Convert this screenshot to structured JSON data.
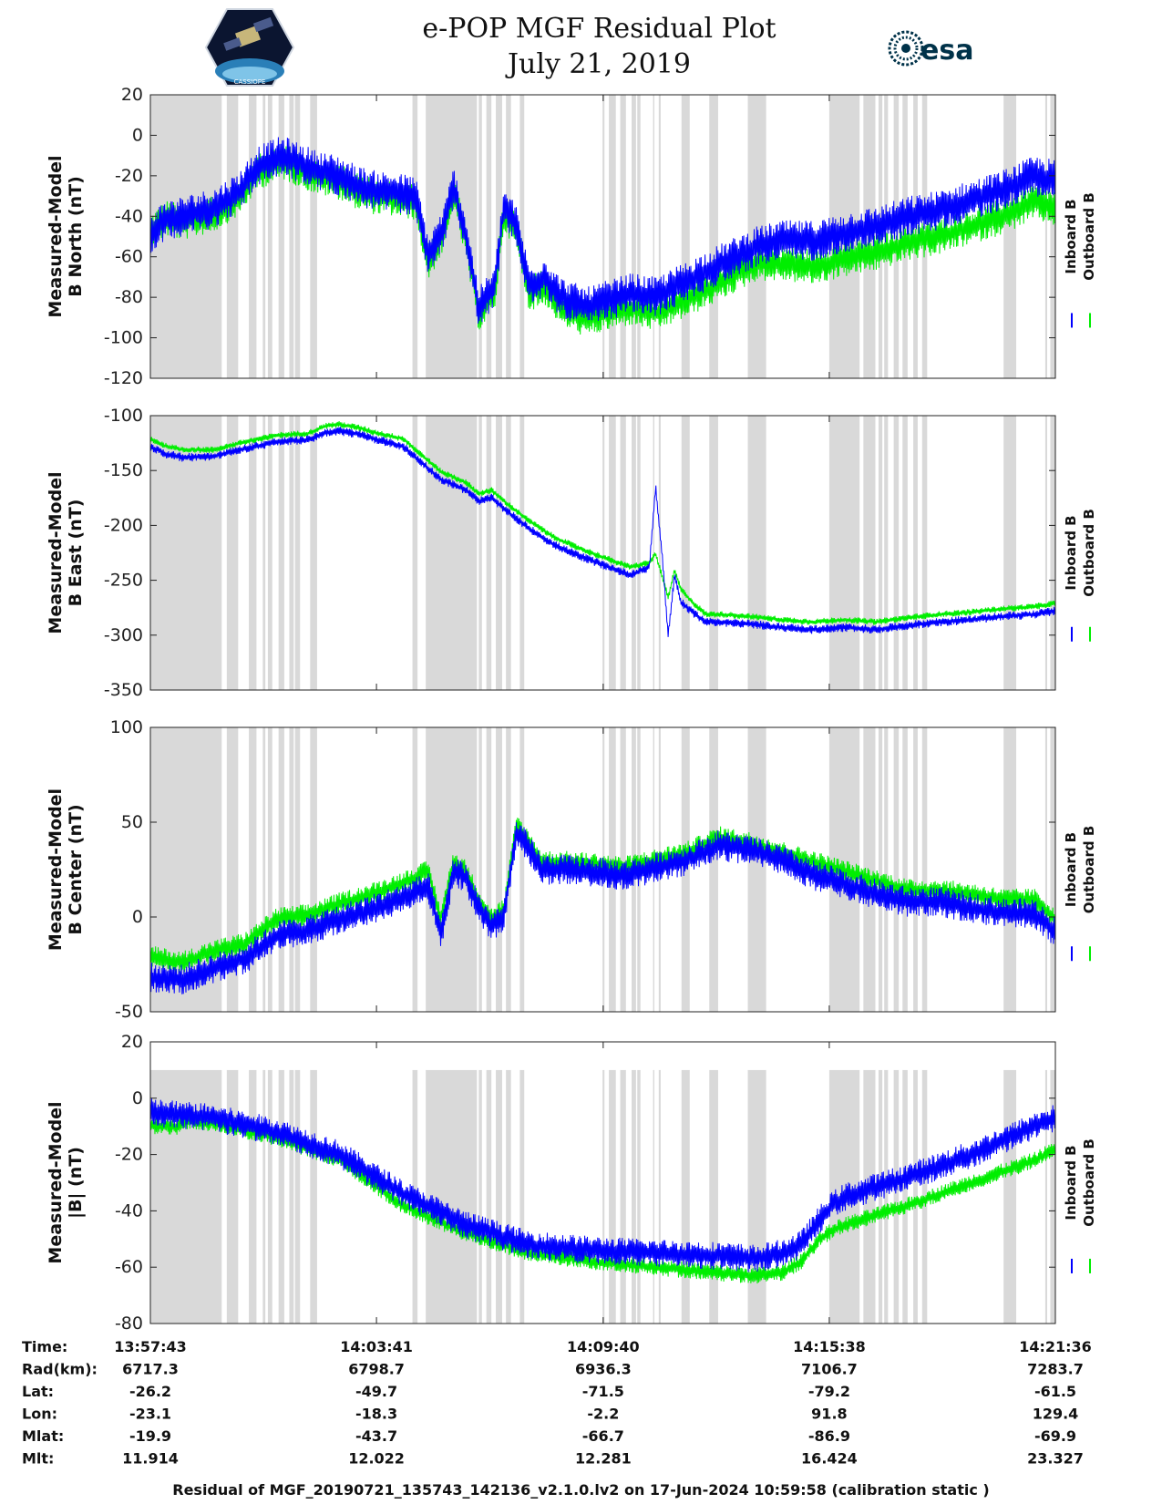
{
  "header": {
    "title_line1": "e-POP MGF Residual Plot",
    "title_line2": "July 21, 2019",
    "left_logo": "cassiope-mission-logo",
    "right_logo_text": "esa"
  },
  "colors": {
    "inboard": "#0000ff",
    "outboard": "#00ee00",
    "gap_shading": "#d9d9d9",
    "axis": "#222222"
  },
  "legend": {
    "inboard": "Inboard B",
    "outboard": "Outboard B"
  },
  "x_range_seconds": [
    0,
    1433
  ],
  "gap_intervals_seconds": [
    [
      0,
      113
    ],
    [
      121,
      139
    ],
    [
      156,
      168
    ],
    [
      178,
      182
    ],
    [
      186,
      193
    ],
    [
      203,
      212
    ],
    [
      220,
      227
    ],
    [
      229,
      237
    ],
    [
      253,
      264
    ],
    [
      415,
      423
    ],
    [
      436,
      517
    ],
    [
      520,
      525
    ],
    [
      532,
      540
    ],
    [
      547,
      557
    ],
    [
      563,
      571
    ],
    [
      585,
      592
    ],
    [
      716,
      719
    ],
    [
      726,
      737
    ],
    [
      744,
      753
    ],
    [
      762,
      769
    ],
    [
      771,
      776
    ],
    [
      796,
      798
    ],
    [
      805,
      808
    ],
    [
      841,
      854
    ],
    [
      885,
      899
    ],
    [
      946,
      975
    ],
    [
      1075,
      1123
    ],
    [
      1129,
      1148
    ],
    [
      1153,
      1159
    ],
    [
      1162,
      1168
    ],
    [
      1177,
      1185
    ],
    [
      1191,
      1199
    ],
    [
      1208,
      1215
    ],
    [
      1222,
      1230
    ],
    [
      1351,
      1371
    ],
    [
      1417,
      1420
    ],
    [
      1425,
      1433
    ]
  ],
  "chart_data": [
    {
      "type": "line",
      "ylabel": "Measured-Model B North (nT)",
      "ylim": [
        -120,
        20
      ],
      "yticks": [
        20,
        0,
        -20,
        -40,
        -60,
        -80,
        -100,
        -120
      ],
      "series": [
        {
          "name": "Outboard B",
          "color": "#00ee00",
          "offset": -3,
          "x": [
            0,
            10,
            25,
            50,
            100,
            140,
            170,
            210,
            260,
            300,
            330,
            350,
            380,
            420,
            440,
            465,
            480,
            500,
            520,
            545,
            560,
            580,
            600,
            625,
            650,
            690,
            720,
            760,
            800,
            850,
            900,
            960,
            1000,
            1050,
            1100,
            1150,
            1200,
            1250,
            1300,
            1350,
            1400,
            1433
          ],
          "y": [
            -45,
            -42,
            -38,
            -40,
            -36,
            -28,
            -15,
            -10,
            -17,
            -20,
            -25,
            -27,
            -28,
            -30,
            -60,
            -45,
            -25,
            -50,
            -85,
            -75,
            -35,
            -45,
            -75,
            -72,
            -82,
            -88,
            -85,
            -82,
            -85,
            -78,
            -70,
            -60,
            -60,
            -62,
            -58,
            -55,
            -50,
            -47,
            -42,
            -37,
            -30,
            -33
          ],
          "noise": 9
        },
        {
          "name": "Inboard B",
          "color": "#0000ff",
          "offset": 0,
          "x": [
            0,
            10,
            25,
            50,
            100,
            140,
            170,
            210,
            260,
            300,
            330,
            350,
            380,
            420,
            440,
            465,
            480,
            500,
            520,
            545,
            560,
            580,
            600,
            625,
            650,
            690,
            720,
            760,
            800,
            850,
            900,
            960,
            1000,
            1050,
            1100,
            1150,
            1200,
            1250,
            1300,
            1350,
            1400,
            1433
          ],
          "y": [
            -50,
            -45,
            -42,
            -40,
            -36,
            -28,
            -15,
            -10,
            -17,
            -20,
            -25,
            -27,
            -28,
            -30,
            -60,
            -45,
            -25,
            -50,
            -85,
            -75,
            -35,
            -45,
            -75,
            -70,
            -80,
            -85,
            -82,
            -78,
            -80,
            -72,
            -64,
            -55,
            -52,
            -52,
            -48,
            -45,
            -40,
            -37,
            -32,
            -27,
            -20,
            -22
          ],
          "noise": 10
        }
      ]
    },
    {
      "type": "line",
      "ylabel": "Measured-Model B East (nT)",
      "ylim": [
        -350,
        -100
      ],
      "yticks": [
        -100,
        -150,
        -200,
        -250,
        -300,
        -350
      ],
      "series": [
        {
          "name": "Outboard B",
          "color": "#00ee00",
          "offset": 4,
          "x": [
            0,
            25,
            50,
            100,
            150,
            200,
            250,
            280,
            300,
            330,
            360,
            400,
            430,
            460,
            480,
            500,
            520,
            540,
            560,
            600,
            640,
            680,
            740,
            760,
            790,
            800,
            810,
            820,
            830,
            840,
            860,
            880,
            900,
            950,
            1000,
            1050,
            1100,
            1150,
            1200,
            1250,
            1300,
            1350,
            1400,
            1433
          ],
          "y": [
            -125,
            -132,
            -135,
            -135,
            -128,
            -122,
            -120,
            -113,
            -112,
            -115,
            -120,
            -125,
            -140,
            -155,
            -160,
            -165,
            -175,
            -172,
            -182,
            -200,
            -215,
            -225,
            -238,
            -242,
            -238,
            -230,
            -250,
            -270,
            -245,
            -262,
            -275,
            -285,
            -285,
            -287,
            -290,
            -292,
            -290,
            -292,
            -288,
            -285,
            -283,
            -280,
            -278,
            -275
          ],
          "noise": 3
        },
        {
          "name": "Inboard B",
          "color": "#0000ff",
          "offset": 0,
          "x": [
            0,
            25,
            50,
            100,
            150,
            200,
            250,
            280,
            300,
            330,
            360,
            400,
            430,
            460,
            480,
            500,
            520,
            540,
            560,
            600,
            640,
            680,
            740,
            760,
            790,
            800,
            810,
            820,
            830,
            840,
            860,
            880,
            900,
            950,
            1000,
            1050,
            1100,
            1150,
            1200,
            1250,
            1300,
            1350,
            1400,
            1433
          ],
          "y": [
            -128,
            -135,
            -138,
            -137,
            -130,
            -124,
            -122,
            -115,
            -114,
            -117,
            -122,
            -128,
            -143,
            -158,
            -163,
            -168,
            -178,
            -175,
            -185,
            -203,
            -218,
            -228,
            -241,
            -245,
            -238,
            -165,
            -225,
            -300,
            -245,
            -270,
            -280,
            -288,
            -288,
            -290,
            -293,
            -295,
            -293,
            -295,
            -291,
            -288,
            -286,
            -283,
            -281,
            -278
          ],
          "noise": 4
        }
      ]
    },
    {
      "type": "line",
      "ylabel": "Measured-Model B Center (nT)",
      "ylim": [
        -50,
        100
      ],
      "yticks": [
        100,
        50,
        0,
        -50
      ],
      "series": [
        {
          "name": "Outboard B",
          "color": "#00ee00",
          "offset": 4,
          "x": [
            0,
            50,
            100,
            150,
            200,
            250,
            300,
            350,
            400,
            440,
            460,
            480,
            500,
            520,
            540,
            560,
            580,
            600,
            620,
            650,
            700,
            750,
            800,
            850,
            900,
            950,
            1000,
            1050,
            1100,
            1150,
            1200,
            1250,
            1300,
            1350,
            1400,
            1433
          ],
          "y": [
            -25,
            -28,
            -22,
            -18,
            -5,
            -3,
            3,
            8,
            14,
            20,
            -5,
            25,
            20,
            5,
            -5,
            0,
            45,
            35,
            25,
            25,
            24,
            22,
            26,
            30,
            38,
            35,
            30,
            25,
            20,
            15,
            10,
            10,
            8,
            5,
            5,
            -5
          ],
          "noise": 6
        },
        {
          "name": "Inboard B",
          "color": "#0000ff",
          "offset": 0,
          "x": [
            0,
            50,
            100,
            150,
            200,
            250,
            300,
            350,
            400,
            440,
            460,
            480,
            500,
            520,
            540,
            560,
            580,
            600,
            620,
            650,
            700,
            750,
            800,
            850,
            900,
            950,
            1000,
            1050,
            1100,
            1150,
            1200,
            1250,
            1300,
            1350,
            1400,
            1433
          ],
          "y": [
            -32,
            -33,
            -27,
            -22,
            -10,
            -7,
            -1,
            4,
            10,
            16,
            -10,
            25,
            20,
            5,
            -5,
            0,
            45,
            35,
            25,
            25,
            24,
            22,
            26,
            30,
            38,
            35,
            30,
            22,
            17,
            12,
            8,
            8,
            5,
            2,
            2,
            -8
          ],
          "noise": 8
        }
      ]
    },
    {
      "type": "line",
      "ylabel": "Measured-Model |B| (nT)",
      "ylim": [
        -80,
        20
      ],
      "yticks": [
        20,
        0,
        -20,
        -40,
        -60,
        -80
      ],
      "series": [
        {
          "name": "Outboard B",
          "color": "#00ee00",
          "offset": 0,
          "x": [
            0,
            45,
            50,
            100,
            200,
            300,
            400,
            500,
            600,
            700,
            800,
            900,
            960,
            1000,
            1030,
            1060,
            1080,
            1100,
            1200,
            1300,
            1400,
            1433
          ],
          "y": [
            -10,
            -10,
            -8,
            -9,
            -14,
            -22,
            -38,
            -48,
            -55,
            -58,
            -60,
            -62,
            -63,
            -62,
            -58,
            -50,
            -47,
            -45,
            -38,
            -30,
            -22,
            -18
          ],
          "noise": 3
        },
        {
          "name": "Inboard B",
          "color": "#0000ff",
          "offset": 0,
          "x": [
            0,
            50,
            100,
            200,
            300,
            400,
            500,
            600,
            700,
            800,
            900,
            960,
            1000,
            1030,
            1060,
            1080,
            1100,
            1200,
            1300,
            1400,
            1433
          ],
          "y": [
            -5,
            -6,
            -7,
            -12,
            -20,
            -34,
            -45,
            -52,
            -54,
            -55,
            -56,
            -57,
            -55,
            -52,
            -43,
            -38,
            -35,
            -28,
            -20,
            -10,
            -7
          ],
          "noise": 5
        }
      ]
    }
  ],
  "table": {
    "row_labels": [
      "Time:",
      "Rad(km):",
      "Lat:",
      "Lon:",
      "Mlat:",
      "Mlt:"
    ],
    "columns": [
      [
        "13:57:43",
        "6717.3",
        "-26.2",
        "-23.1",
        "-19.9",
        "11.914"
      ],
      [
        "14:03:41",
        "6798.7",
        "-49.7",
        "-18.3",
        "-43.7",
        "12.022"
      ],
      [
        "14:09:40",
        "6936.3",
        "-71.5",
        "-2.2",
        "-66.7",
        "12.281"
      ],
      [
        "14:15:38",
        "7106.7",
        "-79.2",
        "91.8",
        "-86.9",
        "16.424"
      ],
      [
        "14:21:36",
        "7283.7",
        "-61.5",
        "129.4",
        "-69.9",
        "23.327"
      ]
    ]
  },
  "footer": "Residual of MGF_20190721_135743_142136_v2.1.0.lv2 on 17-Jun-2024 10:59:58 (calibration static )"
}
